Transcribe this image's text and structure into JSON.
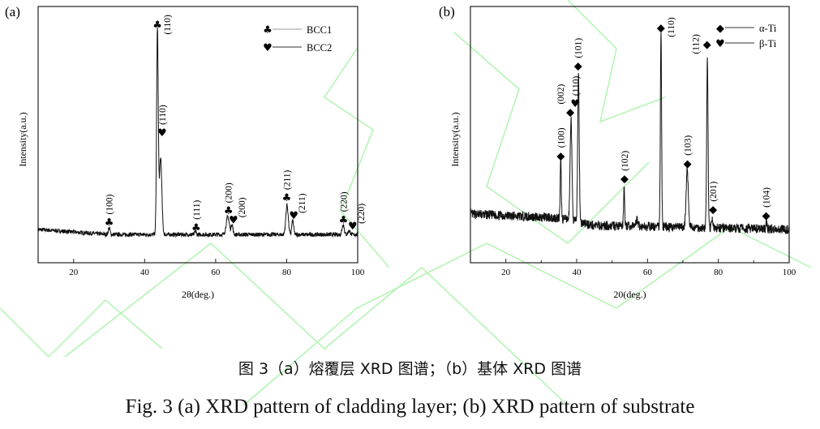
{
  "colors": {
    "curve": "#111111",
    "axis": "#222222",
    "watermark": "#8ef08e"
  },
  "caption": {
    "chinese": "图 3（a）熔覆层 XRD 图谱；（b）基体 XRD 图谱",
    "english": "Fig. 3 (a) XRD pattern of cladding layer; (b) XRD pattern of substrate"
  },
  "chart_data": [
    {
      "type": "line",
      "panel_label": "(a)",
      "xlabel": "2θ(deg.)",
      "ylabel": "Intensity(a.u.)",
      "xlim": [
        10,
        100
      ],
      "ylim": [
        0,
        100
      ],
      "xticks": [
        20,
        40,
        60,
        80,
        100
      ],
      "yticks": [],
      "grid": false,
      "legend": {
        "placement": "top-right",
        "entries": [
          {
            "symbol": "club",
            "label": "BCC1"
          },
          {
            "symbol": "heart",
            "label": "BCC2"
          }
        ]
      },
      "series": [
        {
          "baseline": [
            [
              10,
              13
            ],
            [
              30,
              11
            ],
            [
              100,
              11
            ]
          ],
          "noise": 0.8,
          "peaks": [
            {
              "x": 30.0,
              "height": 2.5,
              "fwhm": 0.6
            },
            {
              "x": 43.6,
              "height": 79.5,
              "fwhm": 0.55
            },
            {
              "x": 44.5,
              "height": 30,
              "fwhm": 0.8
            },
            {
              "x": 54.3,
              "height": 1.2,
              "fwhm": 0.5
            },
            {
              "x": 63.4,
              "height": 7,
              "fwhm": 1.0
            },
            {
              "x": 64.6,
              "height": 4,
              "fwhm": 0.6
            },
            {
              "x": 80.1,
              "height": 11.5,
              "fwhm": 0.8
            },
            {
              "x": 81.7,
              "height": 5.5,
              "fwhm": 0.6
            },
            {
              "x": 95.9,
              "height": 4,
              "fwhm": 0.7
            },
            {
              "x": 97.6,
              "height": 1.5,
              "fwhm": 0.7
            }
          ]
        }
      ],
      "annotations": [
        {
          "symbol": "club",
          "x": 30.0,
          "y": 16,
          "label": "(100)"
        },
        {
          "symbol": "club",
          "x": 43.6,
          "y": 93,
          "label": "(110)"
        },
        {
          "symbol": "heart",
          "x": 44.9,
          "y": 51,
          "label": "(110)"
        },
        {
          "symbol": "club",
          "x": 54.5,
          "y": 14,
          "label": "(111)"
        },
        {
          "symbol": "club",
          "x": 63.6,
          "y": 20.5,
          "label": "(200)"
        },
        {
          "symbol": "heart",
          "x": 65.0,
          "y": 17,
          "label": "(200)"
        },
        {
          "symbol": "club",
          "x": 80.0,
          "y": 25.6,
          "label": "(211)"
        },
        {
          "symbol": "heart",
          "x": 82.0,
          "y": 18.7,
          "label": "(211)"
        },
        {
          "symbol": "club",
          "x": 96.0,
          "y": 17,
          "label": "(220)"
        },
        {
          "symbol": "heart",
          "x": 98.6,
          "y": 14.6,
          "label": "(220)"
        }
      ]
    },
    {
      "type": "line",
      "panel_label": "(b)",
      "xlabel": "20(deg.)",
      "ylabel": "Intensity(a.u.)",
      "xlim": [
        10,
        100
      ],
      "ylim": [
        0,
        100
      ],
      "xticks": [
        20,
        40,
        60,
        80,
        100
      ],
      "minor_xticks": [
        30,
        50,
        70,
        90
      ],
      "yticks": [],
      "grid": false,
      "legend": {
        "placement": "top-right",
        "entries": [
          {
            "symbol": "diamond",
            "label": "α-Ti"
          },
          {
            "symbol": "heart",
            "label": "β-Ti"
          }
        ]
      },
      "series": [
        {
          "baseline": [
            [
              10,
              19
            ],
            [
              35,
              17.5
            ],
            [
              45,
              14.5
            ],
            [
              100,
              13
            ]
          ],
          "noise": 1.8,
          "peaks": [
            {
              "x": 35.5,
              "height": 23,
              "fwhm": 0.35
            },
            {
              "x": 38.4,
              "height": 40,
              "fwhm": 0.6
            },
            {
              "x": 40.5,
              "height": 58,
              "fwhm": 0.5
            },
            {
              "x": 53.4,
              "height": 16,
              "fwhm": 0.35
            },
            {
              "x": 57.0,
              "height": 2.5,
              "fwhm": 0.8
            },
            {
              "x": 63.8,
              "height": 77,
              "fwhm": 0.4
            },
            {
              "x": 71.2,
              "height": 23,
              "fwhm": 0.7
            },
            {
              "x": 76.9,
              "height": 66,
              "fwhm": 0.45
            },
            {
              "x": 78.2,
              "height": 4,
              "fwhm": 0.4
            },
            {
              "x": 93.6,
              "height": 2.5,
              "fwhm": 0.4
            }
          ]
        }
      ],
      "annotations": [
        {
          "symbol": "diamond",
          "x": 35.5,
          "y": 42,
          "label": "(100)"
        },
        {
          "symbol": "diamond",
          "x": 38.2,
          "y": 59,
          "label": "(002)"
        },
        {
          "symbol": "heart",
          "x": 39.6,
          "y": 62.3,
          "label": "(110)"
        },
        {
          "symbol": "diamond",
          "x": 40.4,
          "y": 77,
          "label": "(101)"
        },
        {
          "symbol": "diamond",
          "x": 53.5,
          "y": 33,
          "label": "(102)"
        },
        {
          "symbol": "diamond",
          "x": 63.8,
          "y": 92,
          "label": "(110)"
        },
        {
          "symbol": "diamond",
          "x": 71.3,
          "y": 39,
          "label": "(103)"
        },
        {
          "symbol": "diamond",
          "x": 76.8,
          "y": 85.4,
          "label": "(112)"
        },
        {
          "symbol": "diamond",
          "x": 78.5,
          "y": 21,
          "label": "(201)"
        },
        {
          "symbol": "diamond",
          "x": 93.5,
          "y": 18.7,
          "label": "(104)"
        }
      ]
    }
  ]
}
